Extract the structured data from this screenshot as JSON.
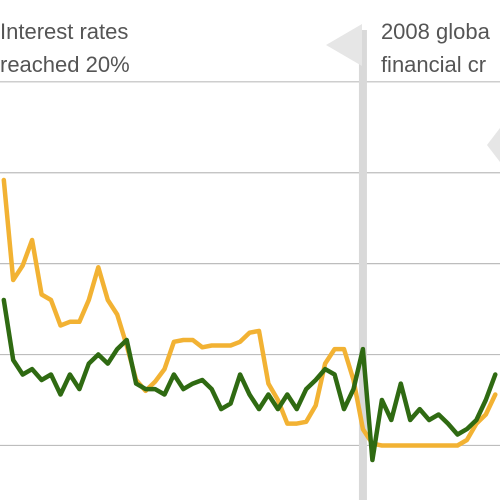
{
  "chart_data": {
    "type": "line",
    "x": [
      1989.0,
      1989.5,
      1990.0,
      1990.5,
      1991.0,
      1991.5,
      1992.0,
      1992.5,
      1993.0,
      1993.5,
      1994.0,
      1994.5,
      1995.0,
      1995.5,
      1996.0,
      1996.5,
      1997.0,
      1997.5,
      1998.0,
      1998.5,
      1999.0,
      1999.5,
      2000.0,
      2000.5,
      2001.0,
      2001.5,
      2002.0,
      2002.5,
      2003.0,
      2003.5,
      2004.0,
      2004.5,
      2005.0,
      2005.5,
      2006.0,
      2006.5,
      2007.0,
      2007.5,
      2008.0,
      2008.5,
      2009.0,
      2009.5,
      2010.0,
      2010.5,
      2011.0,
      2011.5,
      2012.0,
      2012.5,
      2013.0,
      2013.5,
      2014.0,
      2014.5,
      2015.0
    ],
    "series": [
      {
        "color": "#f2b233",
        "values": [
          14.6,
          9.1,
          9.9,
          11.3,
          8.3,
          8.0,
          6.6,
          6.8,
          6.8,
          8.0,
          9.8,
          8.0,
          7.2,
          5.5,
          3.6,
          3.0,
          3.5,
          4.2,
          5.7,
          5.8,
          5.8,
          5.4,
          5.5,
          5.5,
          5.5,
          5.7,
          6.2,
          6.3,
          3.4,
          2.5,
          1.2,
          1.2,
          1.3,
          2.2,
          4.5,
          5.3,
          5.3,
          3.6,
          0.9,
          0.1,
          0.0,
          0.0,
          0.0,
          0.0,
          0.0,
          0.0,
          0.0,
          0.0,
          0.0,
          0.3,
          1.2,
          1.7,
          2.8
        ]
      },
      {
        "color": "#2f6a12",
        "values": [
          8.0,
          4.7,
          3.9,
          4.2,
          3.6,
          3.9,
          2.8,
          3.9,
          3.1,
          4.5,
          5.0,
          4.5,
          5.3,
          5.8,
          3.4,
          3.1,
          3.1,
          2.8,
          3.9,
          3.1,
          3.4,
          3.6,
          3.1,
          2.0,
          2.3,
          3.9,
          2.8,
          2.0,
          2.8,
          2.0,
          2.8,
          2.0,
          3.1,
          3.6,
          4.2,
          3.9,
          2.0,
          3.1,
          5.3,
          -0.8,
          2.5,
          1.4,
          3.4,
          1.4,
          2.0,
          1.4,
          1.7,
          1.2,
          0.6,
          0.9,
          1.4,
          2.5,
          3.9
        ]
      }
    ],
    "xlim": [
      1988.8,
      2015.25
    ],
    "ylim": [
      -3,
      24.5
    ],
    "yticks": [
      0,
      5,
      10,
      15,
      20
    ],
    "grid": true,
    "annotations": [
      {
        "lines": [
          "Interest rates",
          "reached 20%"
        ]
      },
      {
        "lines": [
          "2008 globa",
          "financial cr"
        ],
        "x": 2008
      }
    ]
  }
}
